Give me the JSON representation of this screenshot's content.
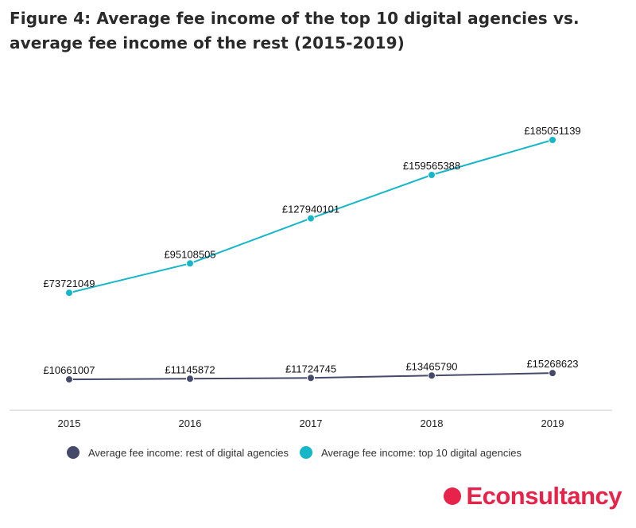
{
  "title": "Figure 4: Average fee income of the top 10 digital agencies vs. average fee income of the rest (2015-2019)",
  "logo": {
    "text": "Econsultancy",
    "color": "#e8234a"
  },
  "chart_data": {
    "type": "line",
    "title": "Figure 4: Average fee income of the top 10 digital agencies vs. average fee income of the rest (2015-2019)",
    "xlabel": "",
    "ylabel": "",
    "categories": [
      "2015",
      "2016",
      "2017",
      "2018",
      "2019"
    ],
    "series": [
      {
        "name": "Average fee income: rest of digital agencies",
        "color": "#454a6b",
        "values": [
          10661007,
          11145872,
          11724745,
          13465790,
          15268623
        ],
        "labels": [
          "£10661007",
          "£11145872",
          "£11724745",
          "£13465790",
          "£15268623"
        ]
      },
      {
        "name": "Average fee income: top 10 digital agencies",
        "color": "#16b6c9",
        "values": [
          73721049,
          95108505,
          127940101,
          159565388,
          185051139
        ],
        "labels": [
          "£73721049",
          "£95108505",
          "£127940101",
          "£159565388",
          "£185051139"
        ]
      }
    ],
    "ylim": [
      0,
      185051139
    ],
    "grid": false,
    "y_axis_visible": false,
    "legend_position": "bottom"
  }
}
